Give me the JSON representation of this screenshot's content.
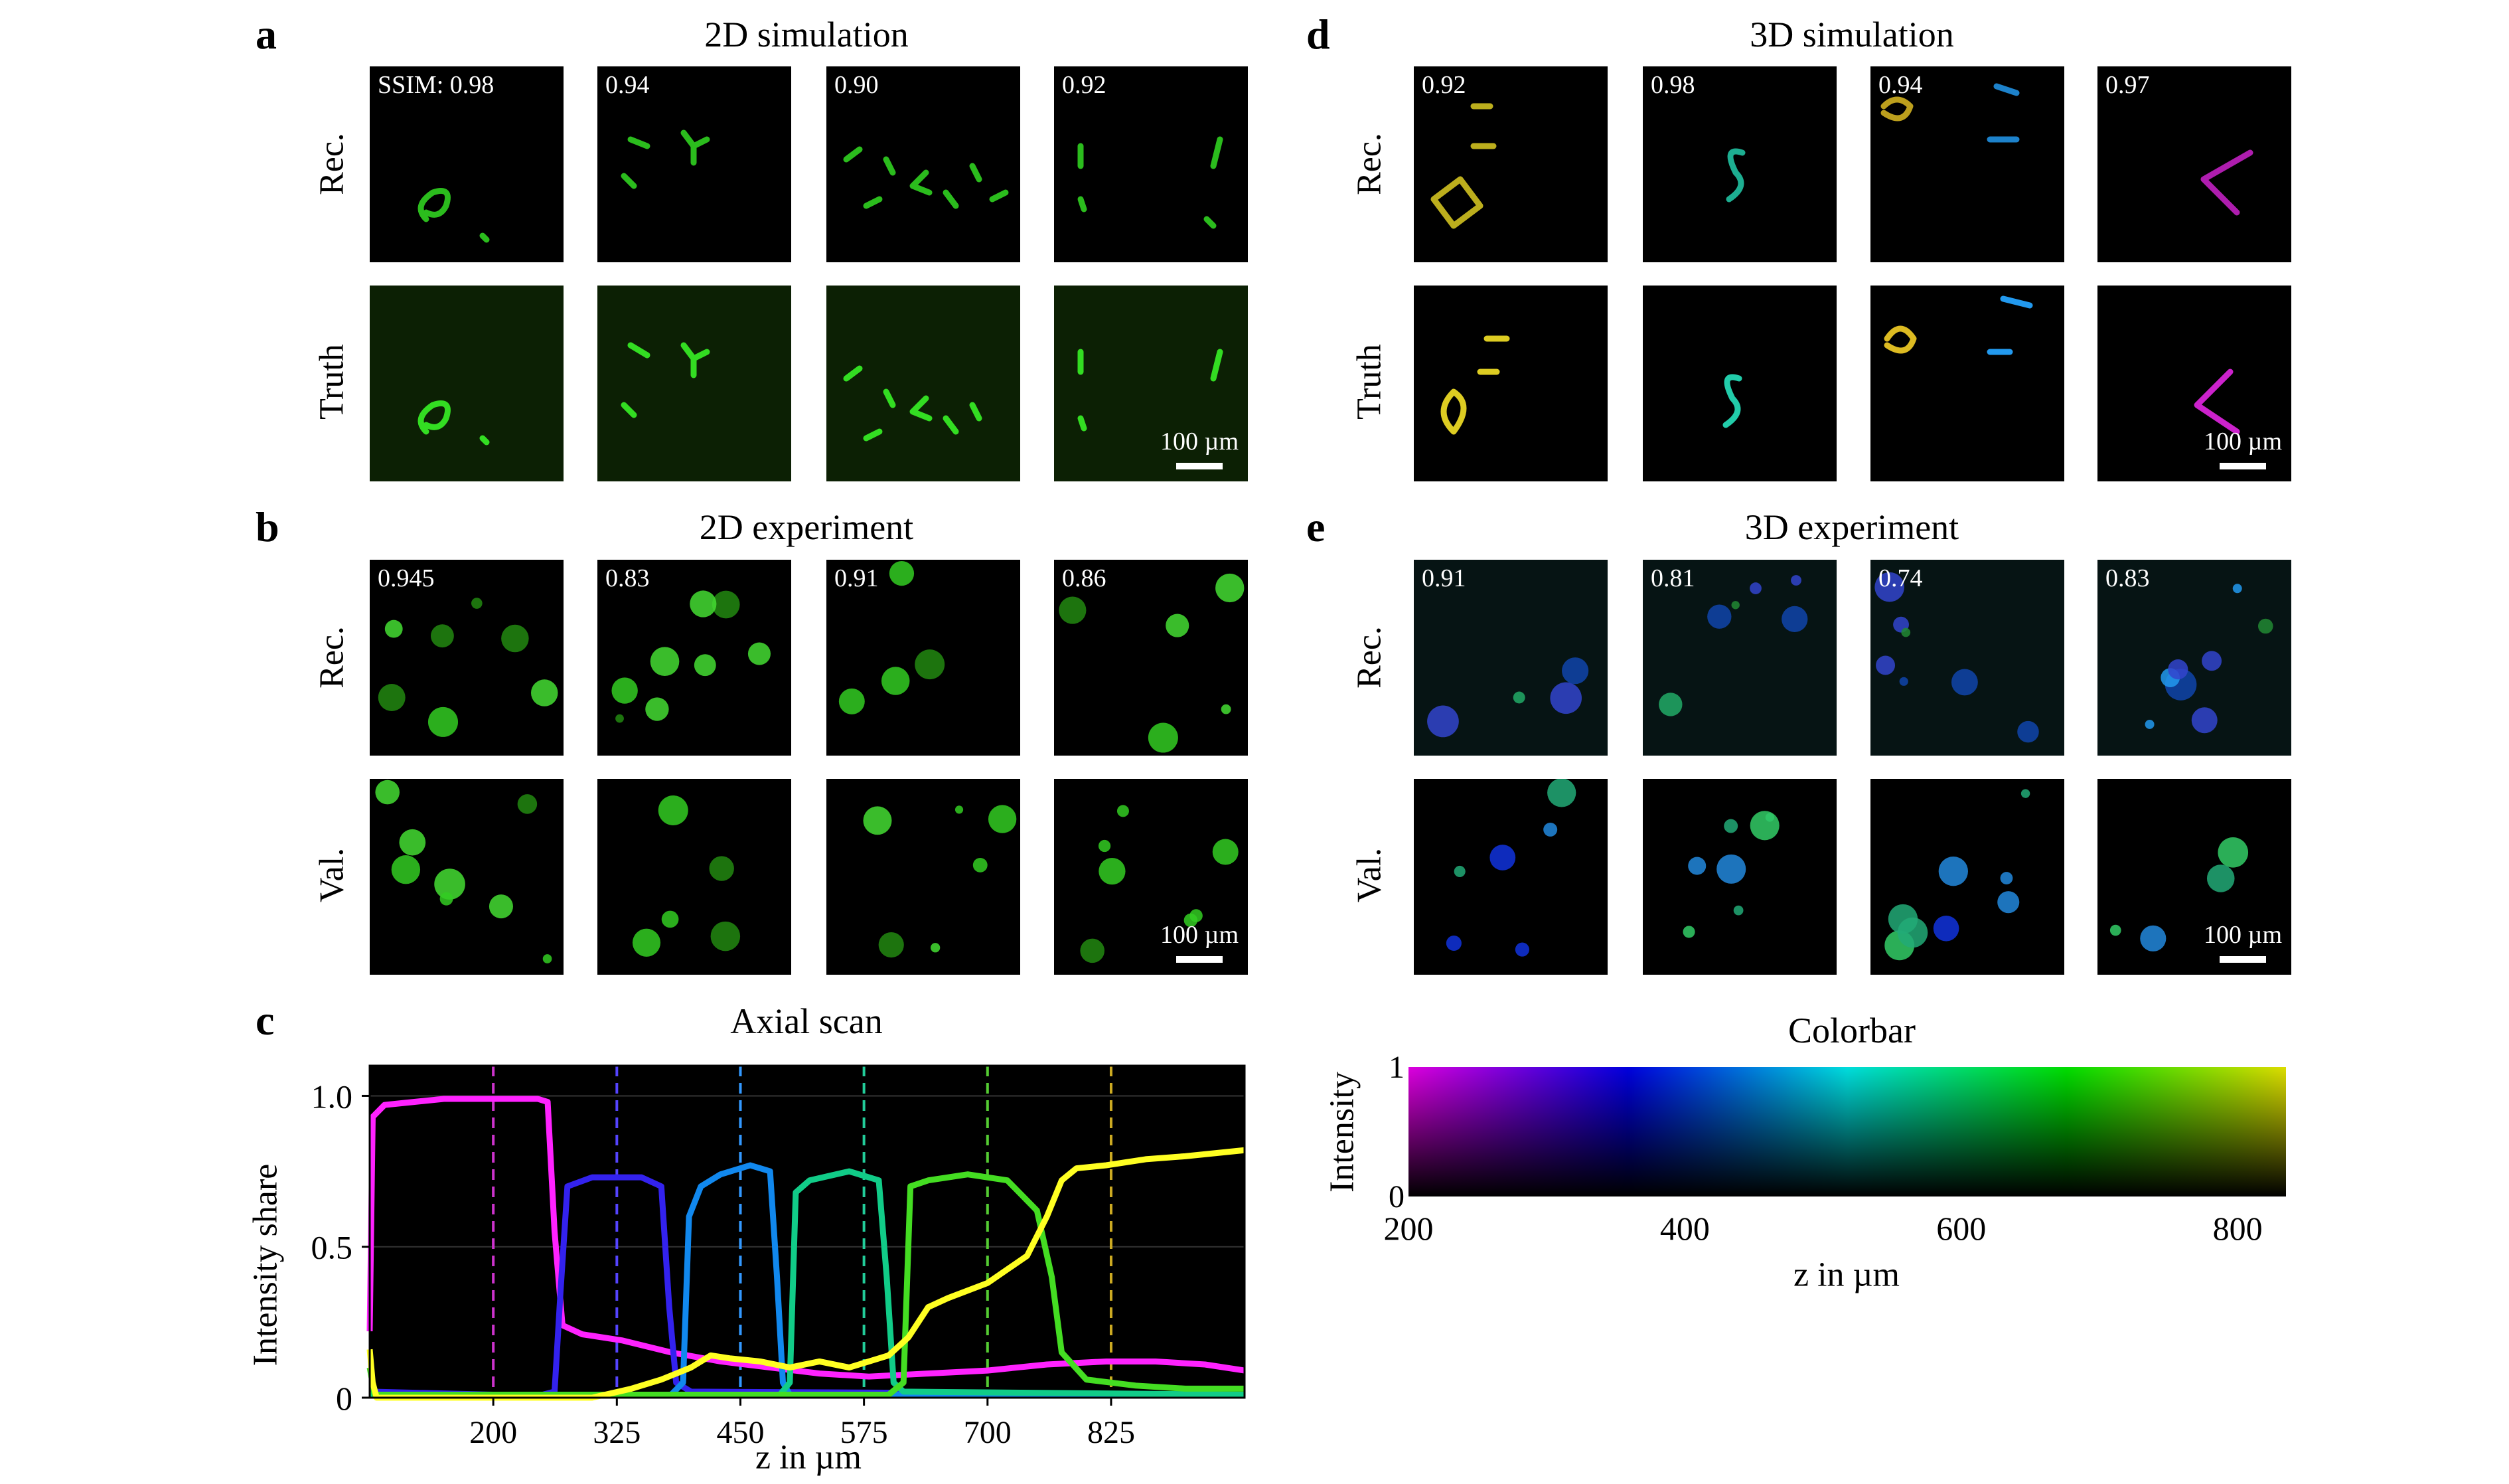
{
  "panels": {
    "a": {
      "letter": "a",
      "title": "2D simulation",
      "row_labels": [
        "Rec.",
        "Truth"
      ],
      "ssim": [
        "SSIM: 0.98",
        "0.94",
        "0.90",
        "0.92"
      ],
      "scalebar": "100 µm"
    },
    "b": {
      "letter": "b",
      "title": "2D experiment",
      "row_labels": [
        "Rec.",
        "Val."
      ],
      "ssim": [
        "0.945",
        "0.83",
        "0.91",
        "0.86"
      ],
      "scalebar": "100 µm"
    },
    "c": {
      "letter": "c",
      "title": "Axial scan"
    },
    "d": {
      "letter": "d",
      "title": "3D simulation",
      "row_labels": [
        "Rec.",
        "Truth"
      ],
      "ssim": [
        "0.92",
        "0.98",
        "0.94",
        "0.97"
      ],
      "scalebar": "100 µm"
    },
    "e": {
      "letter": "e",
      "title": "3D experiment",
      "row_labels": [
        "Rec.",
        "Val."
      ],
      "ssim": [
        "0.91",
        "0.81",
        "0.74",
        "0.83"
      ],
      "scalebar": "100 µm"
    },
    "colorbar": {
      "title": "Colorbar",
      "ylabel": "Intensity",
      "xlabel": "z in µm",
      "y_ticks": [
        "1",
        "0"
      ],
      "x_ticks": [
        "200",
        "400",
        "600",
        "800"
      ],
      "x_range": [
        200,
        835
      ],
      "gradient_colors": [
        "#dd00dd",
        "#0000dd",
        "#00dddd",
        "#00dd00",
        "#dddd00"
      ]
    }
  },
  "chart_data": {
    "type": "line",
    "title": "Axial scan",
    "xlabel": "z in µm",
    "ylabel": "Intensity share",
    "xlim": [
      75,
      960
    ],
    "ylim": [
      0,
      1.1
    ],
    "x_ticks": [
      200,
      325,
      450,
      575,
      700,
      825
    ],
    "y_ticks": [
      0,
      0.5,
      1.0
    ],
    "y_tick_labels": [
      "0",
      "0.5",
      "1.0"
    ],
    "background": "#000000",
    "vertical_markers": [
      {
        "x": 200,
        "color": "#cc33cc"
      },
      {
        "x": 325,
        "color": "#5544ff"
      },
      {
        "x": 450,
        "color": "#3399ff"
      },
      {
        "x": 575,
        "color": "#22cc99"
      },
      {
        "x": 700,
        "color": "#55cc33"
      },
      {
        "x": 825,
        "color": "#ccaa22"
      }
    ],
    "series": [
      {
        "color": "#ff22ff",
        "x": [
          75,
          78,
          90,
          150,
          200,
          245,
          255,
          262,
          270,
          290,
          330,
          380,
          430,
          480,
          530,
          580,
          640,
          700,
          760,
          820,
          870,
          920,
          960
        ],
        "y": [
          0.22,
          0.93,
          0.97,
          0.99,
          0.99,
          0.99,
          0.98,
          0.55,
          0.24,
          0.21,
          0.19,
          0.15,
          0.12,
          0.1,
          0.08,
          0.07,
          0.08,
          0.09,
          0.11,
          0.12,
          0.12,
          0.11,
          0.09
        ]
      },
      {
        "color": "#3322ee",
        "x": [
          75,
          200,
          250,
          262,
          268,
          275,
          300,
          350,
          370,
          378,
          385,
          400,
          960
        ],
        "y": [
          0.02,
          0.01,
          0.01,
          0.02,
          0.35,
          0.7,
          0.73,
          0.73,
          0.7,
          0.3,
          0.05,
          0.02,
          0.01
        ]
      },
      {
        "color": "#1188ee",
        "x": [
          75,
          380,
          392,
          398,
          410,
          430,
          460,
          480,
          487,
          493,
          500,
          960
        ],
        "y": [
          0.01,
          0.01,
          0.05,
          0.6,
          0.7,
          0.74,
          0.77,
          0.75,
          0.4,
          0.05,
          0.01,
          0.01
        ]
      },
      {
        "color": "#11cc88",
        "x": [
          75,
          490,
          500,
          506,
          520,
          560,
          590,
          598,
          605,
          615,
          960
        ],
        "y": [
          0.01,
          0.01,
          0.05,
          0.68,
          0.72,
          0.75,
          0.72,
          0.4,
          0.05,
          0.02,
          0.01
        ]
      },
      {
        "color": "#44dd22",
        "x": [
          75,
          80,
          90,
          150,
          600,
          615,
          622,
          640,
          680,
          720,
          750,
          765,
          775,
          800,
          850,
          900,
          960
        ],
        "y": [
          0.1,
          0.01,
          0.01,
          0.01,
          0.01,
          0.05,
          0.7,
          0.72,
          0.74,
          0.72,
          0.62,
          0.4,
          0.15,
          0.06,
          0.04,
          0.03,
          0.03
        ]
      },
      {
        "color": "#ffff22",
        "x": [
          75,
          78,
          82,
          200,
          300,
          340,
          370,
          400,
          420,
          440,
          470,
          500,
          530,
          560,
          600,
          620,
          640,
          660,
          700,
          740,
          760,
          775,
          790,
          820,
          860,
          900,
          960
        ],
        "y": [
          0.16,
          0.05,
          0.0,
          0.0,
          0.0,
          0.03,
          0.06,
          0.1,
          0.14,
          0.13,
          0.12,
          0.1,
          0.12,
          0.1,
          0.14,
          0.2,
          0.3,
          0.33,
          0.38,
          0.47,
          0.6,
          0.72,
          0.76,
          0.77,
          0.79,
          0.8,
          0.82
        ]
      }
    ]
  }
}
